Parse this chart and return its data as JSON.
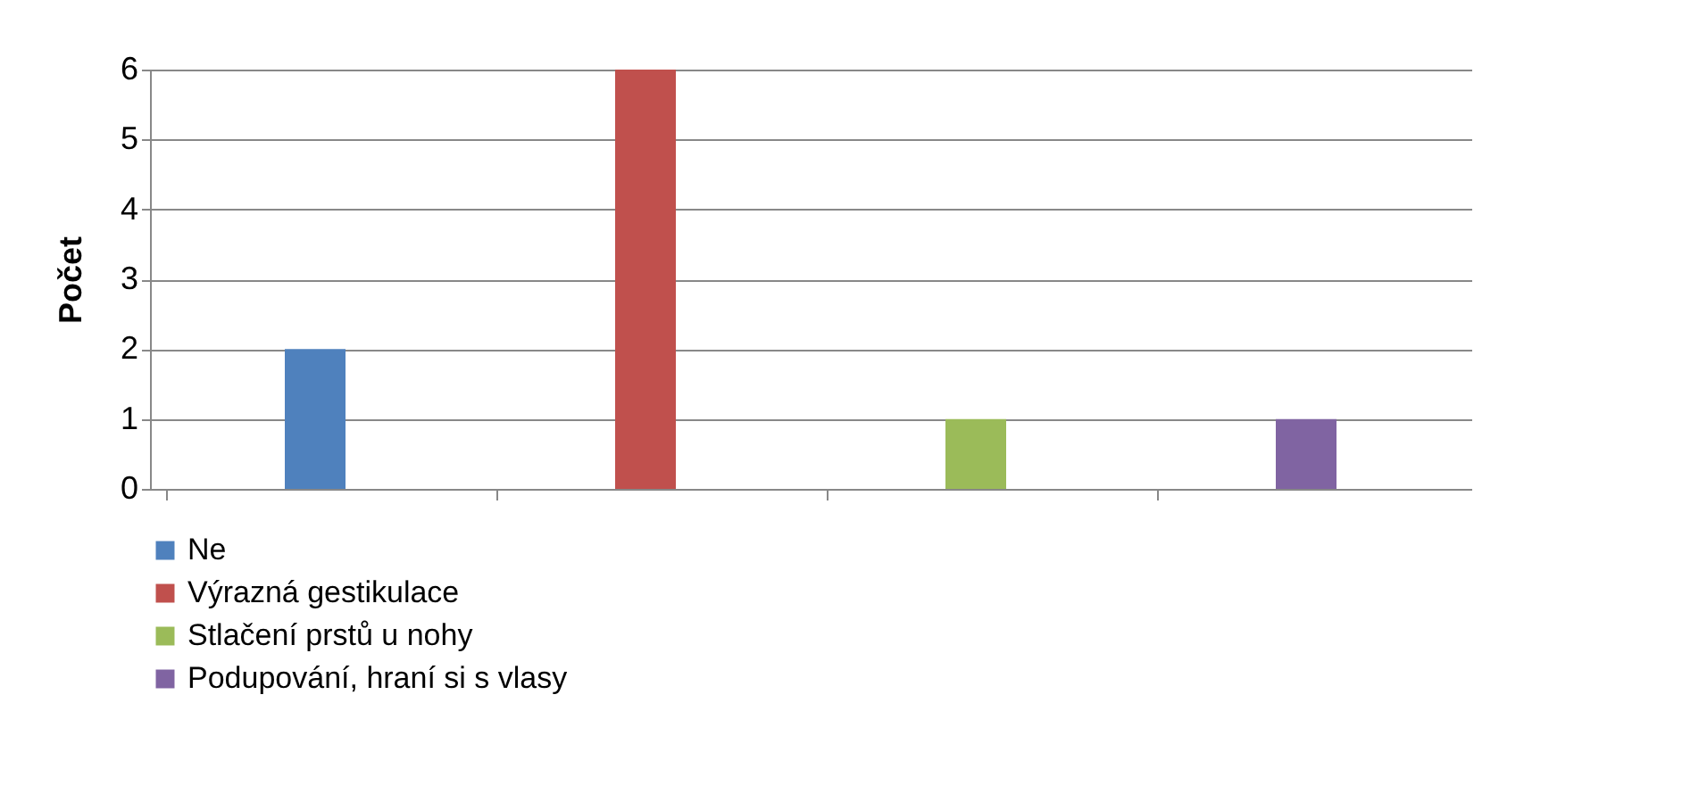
{
  "chart_data": {
    "type": "bar",
    "ylabel": "Počet",
    "categories": [
      null,
      null,
      null,
      null
    ],
    "series": [
      {
        "name": "Ne",
        "color": "#4f81bd",
        "values": [
          2,
          null,
          null,
          null
        ]
      },
      {
        "name": "Výrazná gestikulace",
        "color": "#c0504d",
        "values": [
          null,
          6,
          null,
          null
        ]
      },
      {
        "name": "Stlačení prstů u nohy",
        "color": "#9bbb59",
        "values": [
          null,
          null,
          1,
          null
        ]
      },
      {
        "name": "Podupování, hraní si s vlasy",
        "color": "#8064a2",
        "values": [
          null,
          null,
          null,
          1
        ]
      }
    ],
    "ylim": [
      0,
      6
    ],
    "yticks": [
      0,
      1,
      2,
      3,
      4,
      5,
      6
    ],
    "grid": "y",
    "legend": "bottom left"
  }
}
